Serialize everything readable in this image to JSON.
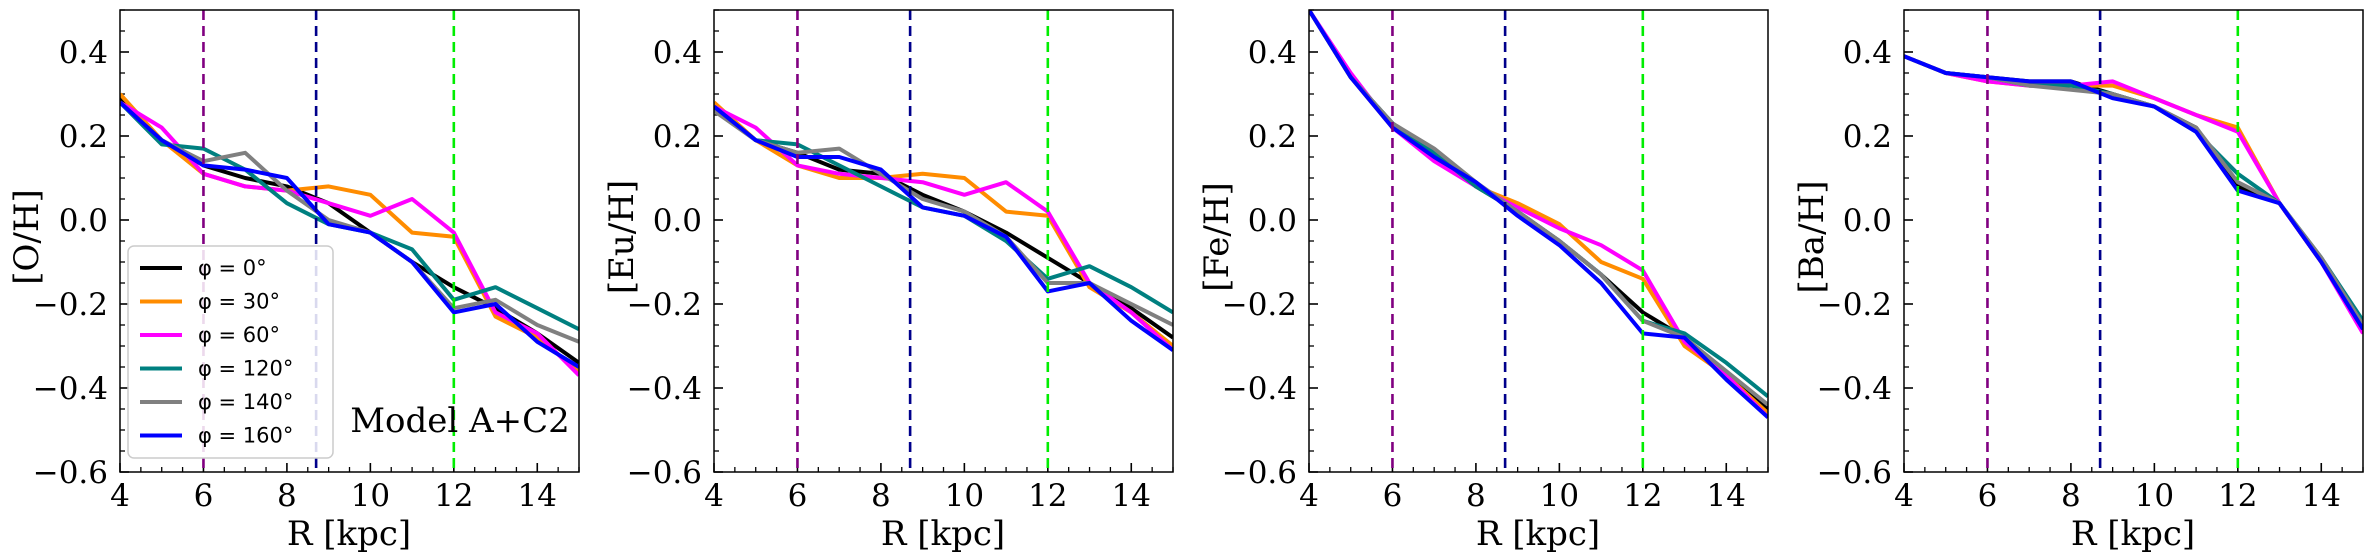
{
  "chart_data": {
    "type": "line",
    "annotation": "Model A+C2",
    "legend": {
      "placement": "lower-left",
      "entries": [
        {
          "label": "φ = 0°",
          "color": "#000000"
        },
        {
          "label": "φ = 30°",
          "color": "#ff8c00"
        },
        {
          "label": "φ = 60°",
          "color": "#ff00ff"
        },
        {
          "label": "φ = 120°",
          "color": "#008080"
        },
        {
          "label": "φ = 140°",
          "color": "#808080"
        },
        {
          "label": "φ = 160°",
          "color": "#0000ff"
        }
      ]
    },
    "vlines": [
      {
        "x": 6,
        "color": "#800080"
      },
      {
        "x": 8.7,
        "color": "#00008b"
      },
      {
        "x": 12,
        "color": "#00ee00"
      }
    ],
    "xlabel": "R [kpc]",
    "xlim": [
      4,
      15
    ],
    "ylim": [
      -0.6,
      0.5
    ],
    "xticks": [
      4,
      6,
      8,
      10,
      12,
      14
    ],
    "xtick_labels": [
      "4",
      "6",
      "8",
      "10",
      "12",
      "14"
    ],
    "yticks": [
      0.4,
      0.2,
      0.0,
      -0.2,
      -0.4,
      -0.6
    ],
    "ytick_labels": [
      "0.4",
      "0.2",
      "0.0",
      "−0.2",
      "−0.4",
      "−0.6"
    ],
    "panels": [
      {
        "ylabel": "[O/H]",
        "series": [
          {
            "name": "φ = 0°",
            "x": [
              4,
              5,
              6,
              7,
              8,
              9,
              10,
              11,
              12,
              13,
              14,
              15
            ],
            "y": [
              0.29,
              0.19,
              0.13,
              0.1,
              0.08,
              0.04,
              -0.03,
              -0.1,
              -0.16,
              -0.21,
              -0.27,
              -0.34
            ]
          },
          {
            "name": "φ = 30°",
            "x": [
              4,
              5,
              6,
              7,
              8,
              9,
              10,
              11,
              12,
              13,
              14,
              15
            ],
            "y": [
              0.3,
              0.19,
              0.11,
              0.08,
              0.07,
              0.08,
              0.06,
              -0.03,
              -0.04,
              -0.23,
              -0.28,
              -0.36
            ]
          },
          {
            "name": "φ = 60°",
            "x": [
              4,
              5,
              6,
              7,
              8,
              9,
              10,
              11,
              12,
              13,
              14,
              15
            ],
            "y": [
              0.28,
              0.22,
              0.11,
              0.08,
              0.07,
              0.04,
              0.01,
              0.05,
              -0.03,
              -0.22,
              -0.27,
              -0.37
            ]
          },
          {
            "name": "φ = 120°",
            "x": [
              4,
              5,
              6,
              7,
              8,
              9,
              10,
              11,
              12,
              13,
              14,
              15
            ],
            "y": [
              0.28,
              0.18,
              0.17,
              0.12,
              0.04,
              -0.01,
              -0.03,
              -0.07,
              -0.19,
              -0.16,
              -0.21,
              -0.26
            ]
          },
          {
            "name": "φ = 140°",
            "x": [
              4,
              5,
              6,
              7,
              8,
              9,
              10,
              11,
              12,
              13,
              14,
              15
            ],
            "y": [
              0.28,
              0.19,
              0.14,
              0.16,
              0.07,
              0.0,
              -0.03,
              -0.1,
              -0.21,
              -0.19,
              -0.25,
              -0.29
            ]
          },
          {
            "name": "φ = 160°",
            "x": [
              4,
              5,
              6,
              7,
              8,
              9,
              10,
              11,
              12,
              13,
              14,
              15
            ],
            "y": [
              0.28,
              0.19,
              0.13,
              0.12,
              0.1,
              -0.01,
              -0.03,
              -0.1,
              -0.22,
              -0.2,
              -0.29,
              -0.35
            ]
          }
        ]
      },
      {
        "ylabel": "[Eu/H]",
        "series": [
          {
            "name": "φ = 0°",
            "x": [
              4,
              5,
              6,
              7,
              8,
              9,
              10,
              11,
              12,
              13,
              14,
              15
            ],
            "y": [
              0.27,
              0.19,
              0.16,
              0.12,
              0.11,
              0.06,
              0.02,
              -0.03,
              -0.09,
              -0.15,
              -0.21,
              -0.28
            ]
          },
          {
            "name": "φ = 30°",
            "x": [
              4,
              5,
              6,
              7,
              8,
              9,
              10,
              11,
              12,
              13,
              14,
              15
            ],
            "y": [
              0.28,
              0.19,
              0.13,
              0.1,
              0.1,
              0.11,
              0.1,
              0.02,
              0.01,
              -0.16,
              -0.22,
              -0.3
            ]
          },
          {
            "name": "φ = 60°",
            "x": [
              4,
              5,
              6,
              7,
              8,
              9,
              10,
              11,
              12,
              13,
              14,
              15
            ],
            "y": [
              0.27,
              0.22,
              0.13,
              0.11,
              0.1,
              0.09,
              0.06,
              0.09,
              0.02,
              -0.15,
              -0.22,
              -0.31
            ]
          },
          {
            "name": "φ = 120°",
            "x": [
              4,
              5,
              6,
              7,
              8,
              9,
              10,
              11,
              12,
              13,
              14,
              15
            ],
            "y": [
              0.27,
              0.19,
              0.18,
              0.13,
              0.08,
              0.03,
              0.01,
              -0.05,
              -0.14,
              -0.11,
              -0.16,
              -0.22
            ]
          },
          {
            "name": "φ = 140°",
            "x": [
              4,
              5,
              6,
              7,
              8,
              9,
              10,
              11,
              12,
              13,
              14,
              15
            ],
            "y": [
              0.26,
              0.19,
              0.16,
              0.17,
              0.11,
              0.05,
              0.02,
              -0.04,
              -0.15,
              -0.15,
              -0.2,
              -0.25
            ]
          },
          {
            "name": "φ = 160°",
            "x": [
              4,
              5,
              6,
              7,
              8,
              9,
              10,
              11,
              12,
              13,
              14,
              15
            ],
            "y": [
              0.27,
              0.19,
              0.15,
              0.15,
              0.12,
              0.03,
              0.01,
              -0.04,
              -0.17,
              -0.15,
              -0.24,
              -0.31
            ]
          }
        ]
      },
      {
        "ylabel": "[Fe/H]",
        "series": [
          {
            "name": "φ = 0°",
            "x": [
              4,
              5,
              6,
              7,
              8,
              9,
              10,
              11,
              12,
              13,
              14,
              15
            ],
            "y": [
              0.5,
              0.34,
              0.23,
              0.16,
              0.08,
              0.02,
              -0.05,
              -0.13,
              -0.22,
              -0.28,
              -0.37,
              -0.45
            ]
          },
          {
            "name": "φ = 30°",
            "x": [
              4,
              5,
              6,
              7,
              8,
              9,
              10,
              11,
              12,
              13,
              14,
              15
            ],
            "y": [
              0.5,
              0.34,
              0.22,
              0.15,
              0.08,
              0.04,
              -0.01,
              -0.1,
              -0.14,
              -0.3,
              -0.37,
              -0.46
            ]
          },
          {
            "name": "φ = 60°",
            "x": [
              4,
              5,
              6,
              7,
              8,
              9,
              10,
              11,
              12,
              13,
              14,
              15
            ],
            "y": [
              0.5,
              0.35,
              0.22,
              0.14,
              0.08,
              0.03,
              -0.02,
              -0.06,
              -0.12,
              -0.29,
              -0.37,
              -0.47
            ]
          },
          {
            "name": "φ = 120°",
            "x": [
              4,
              5,
              6,
              7,
              8,
              9,
              10,
              11,
              12,
              13,
              14,
              15
            ],
            "y": [
              0.5,
              0.34,
              0.23,
              0.16,
              0.08,
              0.02,
              -0.05,
              -0.13,
              -0.24,
              -0.27,
              -0.34,
              -0.42
            ]
          },
          {
            "name": "φ = 140°",
            "x": [
              4,
              5,
              6,
              7,
              8,
              9,
              10,
              11,
              12,
              13,
              14,
              15
            ],
            "y": [
              0.5,
              0.34,
              0.23,
              0.17,
              0.09,
              0.02,
              -0.05,
              -0.13,
              -0.24,
              -0.28,
              -0.36,
              -0.44
            ]
          },
          {
            "name": "φ = 160°",
            "x": [
              4,
              5,
              6,
              7,
              8,
              9,
              10,
              11,
              12,
              13,
              14,
              15
            ],
            "y": [
              0.5,
              0.34,
              0.22,
              0.15,
              0.09,
              0.01,
              -0.06,
              -0.15,
              -0.27,
              -0.28,
              -0.38,
              -0.47
            ]
          }
        ]
      },
      {
        "ylabel": "[Ba/H]",
        "series": [
          {
            "name": "φ = 0°",
            "x": [
              4,
              5,
              6,
              7,
              8,
              9,
              10,
              11,
              12,
              13,
              14,
              15
            ],
            "y": [
              0.39,
              0.35,
              0.34,
              0.33,
              0.33,
              0.3,
              0.27,
              0.22,
              0.08,
              0.04,
              -0.1,
              -0.26
            ]
          },
          {
            "name": "φ = 30°",
            "x": [
              4,
              5,
              6,
              7,
              8,
              9,
              10,
              11,
              12,
              13,
              14,
              15
            ],
            "y": [
              0.39,
              0.35,
              0.33,
              0.32,
              0.32,
              0.32,
              0.29,
              0.25,
              0.22,
              0.04,
              -0.1,
              -0.26
            ]
          },
          {
            "name": "φ = 60°",
            "x": [
              4,
              5,
              6,
              7,
              8,
              9,
              10,
              11,
              12,
              13,
              14,
              15
            ],
            "y": [
              0.39,
              0.35,
              0.33,
              0.32,
              0.32,
              0.33,
              0.29,
              0.25,
              0.21,
              0.04,
              -0.1,
              -0.27
            ]
          },
          {
            "name": "φ = 120°",
            "x": [
              4,
              5,
              6,
              7,
              8,
              9,
              10,
              11,
              12,
              13,
              14,
              15
            ],
            "y": [
              0.39,
              0.35,
              0.34,
              0.32,
              0.32,
              0.3,
              0.27,
              0.21,
              0.11,
              0.04,
              -0.09,
              -0.24
            ]
          },
          {
            "name": "φ = 140°",
            "x": [
              4,
              5,
              6,
              7,
              8,
              9,
              10,
              11,
              12,
              13,
              14,
              15
            ],
            "y": [
              0.39,
              0.35,
              0.34,
              0.32,
              0.31,
              0.3,
              0.27,
              0.22,
              0.09,
              0.04,
              -0.09,
              -0.25
            ]
          },
          {
            "name": "φ = 160°",
            "x": [
              4,
              5,
              6,
              7,
              8,
              9,
              10,
              11,
              12,
              13,
              14,
              15
            ],
            "y": [
              0.39,
              0.35,
              0.34,
              0.33,
              0.33,
              0.29,
              0.27,
              0.21,
              0.07,
              0.04,
              -0.1,
              -0.26
            ]
          }
        ]
      }
    ]
  }
}
